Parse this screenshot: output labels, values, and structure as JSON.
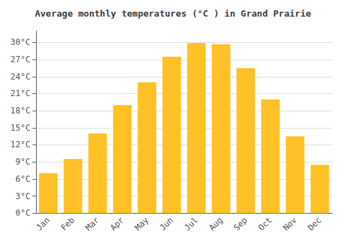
{
  "chart_data": {
    "type": "bar",
    "title": "Average monthly temperatures (°C ) in Grand Prairie",
    "categories": [
      "Jan",
      "Feb",
      "Mar",
      "Apr",
      "May",
      "Jun",
      "Jul",
      "Aug",
      "Sep",
      "Oct",
      "Nov",
      "Dec"
    ],
    "values": [
      7.0,
      9.5,
      14.0,
      19.0,
      23.0,
      27.5,
      29.9,
      29.7,
      25.5,
      20.0,
      13.5,
      8.5
    ],
    "color": "#FFC125",
    "ylim": [
      0,
      32
    ],
    "yticks": [
      {
        "value": 0,
        "label": "0°C"
      },
      {
        "value": 3,
        "label": "3°C"
      },
      {
        "value": 6,
        "label": "6°C"
      },
      {
        "value": 9,
        "label": "9°C"
      },
      {
        "value": 12,
        "label": "12°C"
      },
      {
        "value": 15,
        "label": "15°C"
      },
      {
        "value": 18,
        "label": "18°C"
      },
      {
        "value": 21,
        "label": "21°C"
      },
      {
        "value": 24,
        "label": "24°C"
      },
      {
        "value": 27,
        "label": "27°C"
      },
      {
        "value": 30,
        "label": "30°C"
      }
    ],
    "grid": true
  }
}
